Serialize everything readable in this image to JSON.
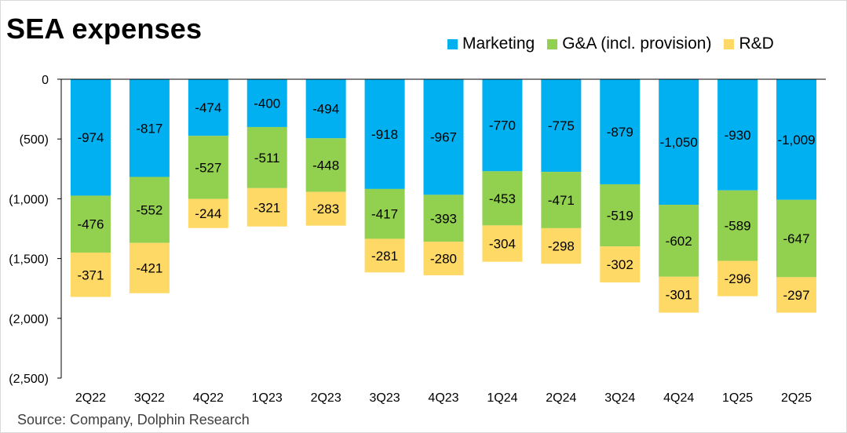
{
  "title": "SEA expenses",
  "source": "Source: Company, Dolphin Research",
  "colors": {
    "marketing": "#00b0f0",
    "ga": "#92d050",
    "rd": "#ffd966"
  },
  "chart_data": {
    "type": "bar",
    "stacked": true,
    "title": "SEA expenses",
    "categories": [
      "2Q22",
      "3Q22",
      "4Q22",
      "1Q23",
      "2Q23",
      "3Q23",
      "4Q23",
      "1Q24",
      "2Q24",
      "3Q24",
      "4Q24",
      "1Q25",
      "2Q25"
    ],
    "series": [
      {
        "name": "Marketing",
        "values": [
          -974,
          -817,
          -474,
          -400,
          -494,
          -918,
          -967,
          -770,
          -775,
          -879,
          -1050,
          -930,
          -1009
        ],
        "labels": [
          "-974",
          "-817",
          "-474",
          "-400",
          "-494",
          "-918",
          "-967",
          "-770",
          "-775",
          "-879",
          "-1,050",
          "-930",
          "-1,009"
        ]
      },
      {
        "name": "G&A (incl. provision)",
        "values": [
          -476,
          -552,
          -527,
          -511,
          -448,
          -417,
          -393,
          -453,
          -471,
          -519,
          -602,
          -589,
          -647
        ],
        "labels": [
          "-476",
          "-552",
          "-527",
          "-511",
          "-448",
          "-417",
          "-393",
          "-453",
          "-471",
          "-519",
          "-602",
          "-589",
          "-647"
        ]
      },
      {
        "name": "R&D",
        "values": [
          -371,
          -421,
          -244,
          -321,
          -283,
          -281,
          -280,
          -304,
          -298,
          -302,
          -301,
          -296,
          -297
        ],
        "labels": [
          "-371",
          "-421",
          "-244",
          "-321",
          "-283",
          "-281",
          "-280",
          "-304",
          "-298",
          "-302",
          "-301",
          "-296",
          "-297"
        ]
      }
    ],
    "ylim": [
      -2500,
      0
    ],
    "yticks": [
      0,
      -500,
      -1000,
      -1500,
      -2000,
      -2500
    ],
    "ytick_labels": [
      "0",
      "(500)",
      "(1,000)",
      "(1,500)",
      "(2,000)",
      "(2,500)"
    ],
    "legend": "top-right",
    "grid": false
  }
}
